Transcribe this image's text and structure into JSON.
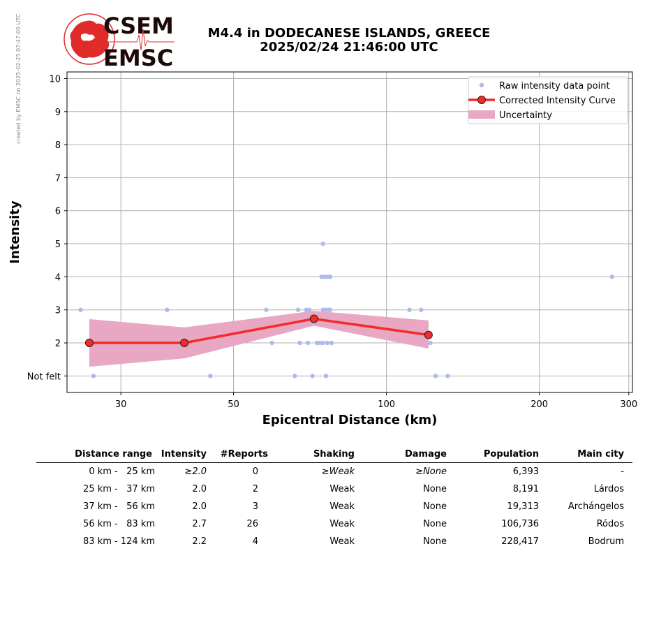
{
  "watermark": "created by EMSC on 2025-02-25 07:47:00 UTC",
  "logo": {
    "text_top": "CSEM",
    "text_bottom": "EMSC"
  },
  "title": {
    "line1": "M4.4 in DODECANESE ISLANDS, GREECE",
    "line2": "2025/02/24 21:46:00 UTC"
  },
  "colors": {
    "raw": "#aebbea",
    "curve": "#f52a2a",
    "marker_edge": "#202020",
    "uncertainty": "#e8a7c2",
    "grid": "#b0b0b0"
  },
  "chart_data": {
    "type": "scatter",
    "xlabel": "Epicentral Distance (km)",
    "ylabel": "Intensity",
    "xscale": "log",
    "xlim": [
      23.5,
      305
    ],
    "ylim": [
      0.5,
      10.2
    ],
    "xticks": [
      30,
      50,
      100,
      200,
      300
    ],
    "yticks": [
      {
        "value": 1,
        "label": "Not felt"
      },
      {
        "value": 2,
        "label": "2"
      },
      {
        "value": 3,
        "label": "3"
      },
      {
        "value": 4,
        "label": "4"
      },
      {
        "value": 5,
        "label": "5"
      },
      {
        "value": 6,
        "label": "6"
      },
      {
        "value": 7,
        "label": "7"
      },
      {
        "value": 8,
        "label": "8"
      },
      {
        "value": 9,
        "label": "9"
      },
      {
        "value": 10,
        "label": "10"
      }
    ],
    "grid": true,
    "legend_position": "top-right",
    "legend": [
      "Raw intensity data point",
      "Corrected Intensity Curve",
      "Uncertainty"
    ],
    "raw_points": [
      [
        25,
        3
      ],
      [
        26.5,
        1
      ],
      [
        37,
        3
      ],
      [
        45,
        1
      ],
      [
        58,
        3
      ],
      [
        59.5,
        2
      ],
      [
        66,
        1
      ],
      [
        67,
        3
      ],
      [
        67.5,
        2
      ],
      [
        69.5,
        3
      ],
      [
        70,
        2
      ],
      [
        70.5,
        3
      ],
      [
        71.5,
        1
      ],
      [
        73,
        2
      ],
      [
        74,
        2
      ],
      [
        74.5,
        4
      ],
      [
        75,
        5
      ],
      [
        75,
        2
      ],
      [
        75,
        3
      ],
      [
        75.5,
        4
      ],
      [
        76,
        3
      ],
      [
        76,
        1
      ],
      [
        76.5,
        2
      ],
      [
        76.5,
        4
      ],
      [
        77,
        3
      ],
      [
        77.5,
        4
      ],
      [
        77.5,
        3
      ],
      [
        78,
        2
      ],
      [
        111,
        3
      ],
      [
        117,
        3
      ],
      [
        122,
        2
      ],
      [
        125,
        1
      ],
      [
        132,
        1
      ],
      [
        278,
        4
      ]
    ],
    "curve": {
      "x": [
        26,
        40,
        72,
        121
      ],
      "y": [
        2.0,
        2.0,
        2.73,
        2.24
      ]
    },
    "uncertainty": {
      "x": [
        26,
        40,
        72,
        121
      ],
      "upper": [
        2.72,
        2.47,
        2.97,
        2.68
      ],
      "lower": [
        1.28,
        1.53,
        2.52,
        1.83
      ]
    }
  },
  "table": {
    "headers": [
      "Distance range",
      "Intensity",
      "#Reports",
      "Shaking",
      "Damage",
      "Population",
      "Main city"
    ],
    "rows": [
      {
        "from": "0 km -",
        "to": "25 km",
        "intensity": "≥2.0",
        "reports": "0",
        "shaking": "≥Weak",
        "damage": "≥None",
        "population": "6,393",
        "city": "-",
        "italic": true
      },
      {
        "from": "25 km -",
        "to": "37 km",
        "intensity": "2.0",
        "reports": "2",
        "shaking": "Weak",
        "damage": "None",
        "population": "8,191",
        "city": "Lárdos",
        "italic": false
      },
      {
        "from": "37 km -",
        "to": "56 km",
        "intensity": "2.0",
        "reports": "3",
        "shaking": "Weak",
        "damage": "None",
        "population": "19,313",
        "city": "Archángelos",
        "italic": false
      },
      {
        "from": "56 km -",
        "to": "83 km",
        "intensity": "2.7",
        "reports": "26",
        "shaking": "Weak",
        "damage": "None",
        "population": "106,736",
        "city": "Ródos",
        "italic": false
      },
      {
        "from": "83 km -",
        "to": "124 km",
        "intensity": "2.2",
        "reports": "4",
        "shaking": "Weak",
        "damage": "None",
        "population": "228,417",
        "city": "Bodrum",
        "italic": false
      }
    ]
  }
}
